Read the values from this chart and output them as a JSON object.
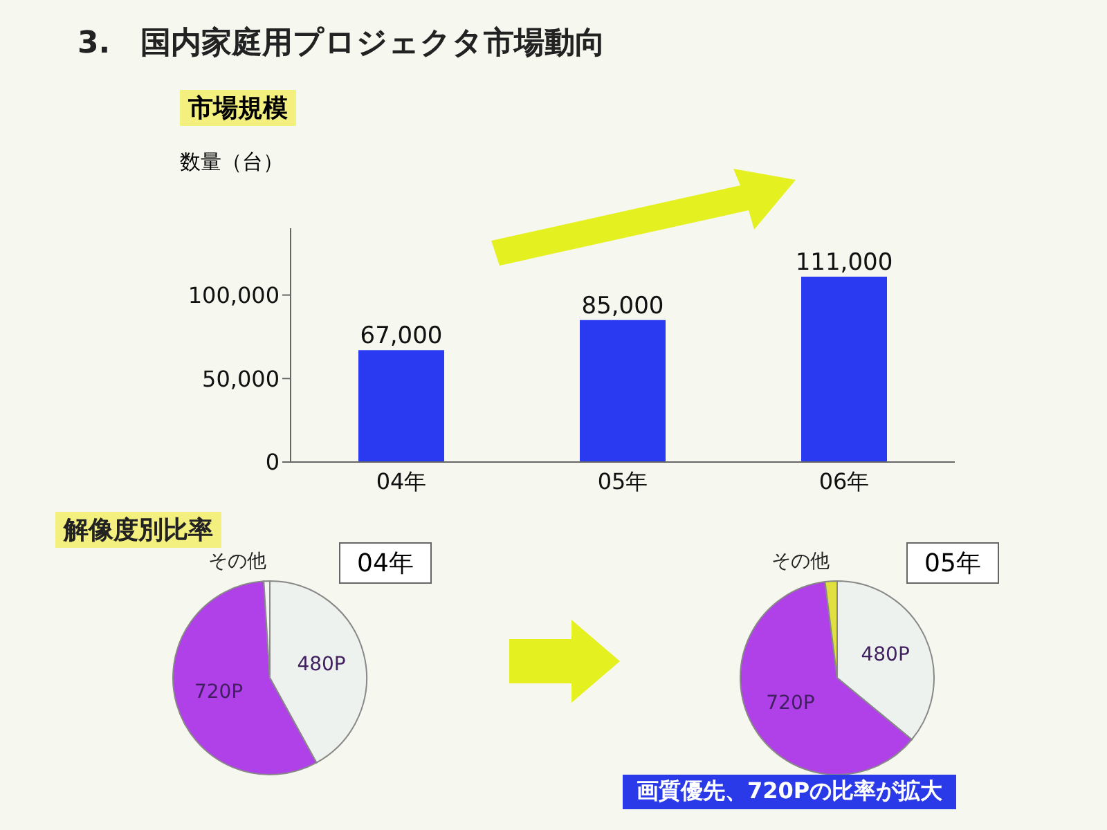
{
  "chart_data": [
    {
      "type": "bar",
      "title": "3.　国内家庭用プロジェクタ市場動向",
      "subtitle": "市場規模",
      "ylabel": "数量（台）",
      "categories": [
        "04年",
        "05年",
        "06年"
      ],
      "values": [
        67000,
        85000,
        111000
      ],
      "value_labels": [
        "67,000",
        "85,000",
        "111,000"
      ],
      "color": "#2a3af0",
      "ylim": [
        0,
        140000
      ],
      "yticks": [
        0,
        {
          "value": 50000,
          "label": "50,000"
        },
        {
          "value": 100000,
          "label": "100,000"
        }
      ]
    },
    {
      "type": "pie",
      "title": "解像度別比率",
      "subtitle": "04年",
      "categories": [
        "480P",
        "720P",
        "その他"
      ],
      "values": [
        42,
        57,
        1
      ],
      "colors": [
        "#eef2ee",
        "#b040e8",
        "#f4f4f0"
      ]
    },
    {
      "type": "pie",
      "subtitle": "05年",
      "categories": [
        "480P",
        "720P",
        "その他"
      ],
      "values": [
        36,
        62,
        2
      ],
      "colors": [
        "#eef2ee",
        "#b040e8",
        "#e0e040"
      ],
      "annotations": [
        "画質優先、720Pの比率が拡大"
      ]
    }
  ]
}
